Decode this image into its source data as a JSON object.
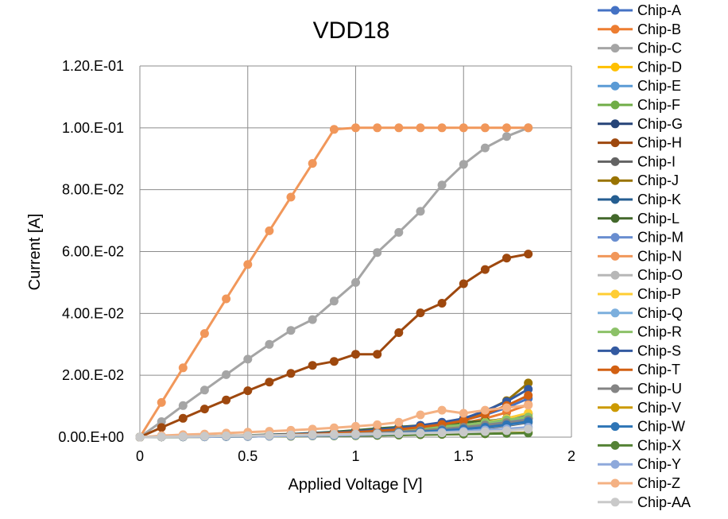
{
  "chart_data": {
    "type": "line",
    "title": "VDD18",
    "xlabel": "Applied Voltage [V]",
    "ylabel": "Current [A]",
    "xlim": [
      0,
      2
    ],
    "ylim": [
      0,
      0.12
    ],
    "x_ticks": [
      "0",
      "0.5",
      "1",
      "1.5",
      "2"
    ],
    "y_ticks": [
      "0.00.E+00",
      "2.00.E-02",
      "4.00.E-02",
      "6.00.E-02",
      "8.00.E-02",
      "1.00.E-01",
      "1.20.E-01"
    ],
    "grid": true,
    "legend_position": "right",
    "x": [
      0,
      0.1,
      0.2,
      0.3,
      0.4,
      0.5,
      0.6,
      0.7,
      0.8,
      0.9,
      1.0,
      1.1,
      1.2,
      1.3,
      1.4,
      1.5,
      1.6,
      1.7,
      1.8
    ],
    "series": [
      {
        "name": "Chip-A",
        "color": "#4472C4",
        "values": [
          0,
          0.0001,
          0.0002,
          0.0003,
          0.0004,
          0.0005,
          0.0007,
          0.0009,
          0.0011,
          0.0014,
          0.0017,
          0.0021,
          0.0026,
          0.0033,
          0.0042,
          0.0055,
          0.0072,
          0.0095,
          0.0125
        ]
      },
      {
        "name": "Chip-B",
        "color": "#ED7D31",
        "values": [
          0,
          0.0001,
          0.0002,
          0.0002,
          0.0003,
          0.0004,
          0.0005,
          0.0006,
          0.0008,
          0.001,
          0.0013,
          0.0016,
          0.002,
          0.0026,
          0.0034,
          0.0045,
          0.006,
          0.008,
          0.0105
        ]
      },
      {
        "name": "Chip-C",
        "color": "#A5A5A5",
        "values": [
          0,
          0.005,
          0.0102,
          0.0152,
          0.0202,
          0.0252,
          0.03,
          0.0345,
          0.038,
          0.044,
          0.05,
          0.0597,
          0.0662,
          0.073,
          0.0815,
          0.0882,
          0.0935,
          0.0972,
          0.1
        ]
      },
      {
        "name": "Chip-D",
        "color": "#FFC000",
        "values": [
          0,
          0.0001,
          0.0001,
          0.0002,
          0.0002,
          0.0003,
          0.0004,
          0.0005,
          0.0006,
          0.0008,
          0.001,
          0.0012,
          0.0015,
          0.0019,
          0.0024,
          0.0031,
          0.004,
          0.0052,
          0.0068
        ]
      },
      {
        "name": "Chip-E",
        "color": "#5B9BD5",
        "values": [
          0,
          0.0001,
          0.0001,
          0.0002,
          0.0003,
          0.0004,
          0.0005,
          0.0006,
          0.0008,
          0.001,
          0.0012,
          0.0015,
          0.0019,
          0.0024,
          0.003,
          0.0038,
          0.0048,
          0.006,
          0.0075
        ]
      },
      {
        "name": "Chip-F",
        "color": "#70AD47",
        "values": [
          0,
          0.0001,
          0.0002,
          0.0003,
          0.0004,
          0.0005,
          0.0006,
          0.0008,
          0.001,
          0.0012,
          0.0015,
          0.0019,
          0.0024,
          0.003,
          0.0037,
          0.0045,
          0.0052,
          0.0058,
          0.0062
        ]
      },
      {
        "name": "Chip-G",
        "color": "#264478",
        "values": [
          0,
          0.0001,
          0.0001,
          0.0002,
          0.0002,
          0.0003,
          0.0004,
          0.0005,
          0.0006,
          0.0007,
          0.0009,
          0.0011,
          0.0014,
          0.0018,
          0.0023,
          0.003,
          0.0038,
          0.0048,
          0.006
        ]
      },
      {
        "name": "Chip-H",
        "color": "#9E480E",
        "values": [
          0,
          0.0031,
          0.0061,
          0.0091,
          0.012,
          0.015,
          0.0178,
          0.0206,
          0.0232,
          0.0245,
          0.0268,
          0.0268,
          0.0338,
          0.0402,
          0.0433,
          0.0496,
          0.0542,
          0.0579,
          0.0592
        ]
      },
      {
        "name": "Chip-I",
        "color": "#636363",
        "values": [
          0,
          0.0001,
          0.0001,
          0.0002,
          0.0002,
          0.0003,
          0.0003,
          0.0004,
          0.0005,
          0.0006,
          0.0007,
          0.0009,
          0.0011,
          0.0014,
          0.0018,
          0.0023,
          0.0029,
          0.0037,
          0.0047
        ]
      },
      {
        "name": "Chip-J",
        "color": "#997300",
        "values": [
          0,
          0.0001,
          0.0002,
          0.0003,
          0.0004,
          0.0005,
          0.0007,
          0.0009,
          0.0011,
          0.0014,
          0.0018,
          0.0022,
          0.0028,
          0.0036,
          0.0046,
          0.006,
          0.0083,
          0.0118,
          0.0175
        ]
      },
      {
        "name": "Chip-K",
        "color": "#255E91",
        "values": [
          0,
          0.0001,
          0.0001,
          0.0002,
          0.0003,
          0.0004,
          0.0005,
          0.0006,
          0.0008,
          0.001,
          0.0013,
          0.0016,
          0.002,
          0.0025,
          0.0031,
          0.0039,
          0.0049,
          0.0061,
          0.0076
        ]
      },
      {
        "name": "Chip-L",
        "color": "#43682B",
        "values": [
          0,
          0.0001,
          0.0002,
          0.0003,
          0.0004,
          0.0006,
          0.0008,
          0.001,
          0.0013,
          0.0017,
          0.0022,
          0.0028,
          0.0033,
          0.0038,
          0.0043,
          0.0048,
          0.0052,
          0.0056,
          0.006
        ]
      },
      {
        "name": "Chip-M",
        "color": "#698ED0",
        "values": [
          0,
          0.0001,
          0.0001,
          0.0002,
          0.0003,
          0.0004,
          0.0005,
          0.0006,
          0.0007,
          0.0009,
          0.0011,
          0.0014,
          0.0017,
          0.0021,
          0.0026,
          0.0032,
          0.004,
          0.0049,
          0.006
        ]
      },
      {
        "name": "Chip-N",
        "color": "#F1975A",
        "values": [
          0,
          0.0112,
          0.0224,
          0.0335,
          0.0447,
          0.0558,
          0.0667,
          0.0776,
          0.0885,
          0.0995,
          0.1,
          0.1,
          0.1,
          0.1,
          0.1,
          0.1,
          0.1,
          0.1,
          0.1
        ]
      },
      {
        "name": "Chip-O",
        "color": "#B7B7B7",
        "values": [
          0,
          0.0001,
          0.0001,
          0.0001,
          0.0002,
          0.0002,
          0.0003,
          0.0003,
          0.0004,
          0.0005,
          0.0006,
          0.0007,
          0.0009,
          0.0011,
          0.0013,
          0.0016,
          0.002,
          0.0024,
          0.003
        ]
      },
      {
        "name": "Chip-P",
        "color": "#FFCD33",
        "values": [
          0,
          0.0001,
          0.0001,
          0.0002,
          0.0003,
          0.0004,
          0.0005,
          0.0006,
          0.0008,
          0.001,
          0.0012,
          0.0015,
          0.0019,
          0.0024,
          0.003,
          0.0038,
          0.0048,
          0.006,
          0.0078
        ]
      },
      {
        "name": "Chip-Q",
        "color": "#7CAFDD",
        "values": [
          0,
          0.0001,
          0.0001,
          0.0002,
          0.0002,
          0.0003,
          0.0004,
          0.0005,
          0.0006,
          0.0007,
          0.0009,
          0.0011,
          0.0013,
          0.0016,
          0.002,
          0.0025,
          0.0031,
          0.0039,
          0.0049
        ]
      },
      {
        "name": "Chip-R",
        "color": "#8CC168",
        "values": [
          0,
          0.0001,
          0.0002,
          0.0003,
          0.0004,
          0.0005,
          0.0006,
          0.0007,
          0.0009,
          0.0011,
          0.0014,
          0.0017,
          0.0021,
          0.0026,
          0.0032,
          0.0039,
          0.0047,
          0.0056,
          0.0065
        ]
      },
      {
        "name": "Chip-S",
        "color": "#335AA1",
        "values": [
          0,
          0.0001,
          0.0002,
          0.0003,
          0.0004,
          0.0005,
          0.0007,
          0.0009,
          0.0012,
          0.0015,
          0.0019,
          0.0024,
          0.003,
          0.0038,
          0.0048,
          0.006,
          0.0085,
          0.0115,
          0.0155
        ]
      },
      {
        "name": "Chip-T",
        "color": "#D26012",
        "values": [
          0,
          0.0001,
          0.0002,
          0.0003,
          0.0004,
          0.0005,
          0.0006,
          0.0008,
          0.001,
          0.0013,
          0.0016,
          0.002,
          0.0025,
          0.0032,
          0.0041,
          0.0053,
          0.0075,
          0.0102,
          0.0135
        ]
      },
      {
        "name": "Chip-U",
        "color": "#848484",
        "values": [
          0,
          0.0001,
          0.0001,
          0.0002,
          0.0003,
          0.0004,
          0.0005,
          0.0006,
          0.0007,
          0.0009,
          0.0011,
          0.0014,
          0.0017,
          0.0021,
          0.0026,
          0.0032,
          0.0039,
          0.0047,
          0.0056
        ]
      },
      {
        "name": "Chip-V",
        "color": "#CC9A00",
        "values": [
          0,
          0.0001,
          0.0001,
          0.0001,
          0.0002,
          0.0002,
          0.0003,
          0.0003,
          0.0004,
          0.0005,
          0.0005,
          0.0006,
          0.0007,
          0.0008,
          0.0009,
          0.001,
          0.0011,
          0.0013,
          0.0015
        ]
      },
      {
        "name": "Chip-W",
        "color": "#2E75B6",
        "values": [
          0,
          0.0001,
          0.0001,
          0.0002,
          0.0002,
          0.0003,
          0.0004,
          0.0005,
          0.0006,
          0.0007,
          0.0009,
          0.0011,
          0.0014,
          0.0017,
          0.0021,
          0.0026,
          0.0032,
          0.004,
          0.005
        ]
      },
      {
        "name": "Chip-X",
        "color": "#548235",
        "values": [
          0,
          0.0001,
          0.0001,
          0.0001,
          0.0002,
          0.0002,
          0.0003,
          0.0003,
          0.0004,
          0.0004,
          0.0005,
          0.0006,
          0.0007,
          0.0008,
          0.0009,
          0.001,
          0.0011,
          0.0012,
          0.0013
        ]
      },
      {
        "name": "Chip-Y",
        "color": "#8EA9DB",
        "values": [
          0,
          0.0001,
          0.0001,
          0.0001,
          0.0002,
          0.0002,
          0.0003,
          0.0004,
          0.0005,
          0.0006,
          0.0007,
          0.0009,
          0.0011,
          0.0013,
          0.0016,
          0.0019,
          0.0023,
          0.0027,
          0.0032
        ]
      },
      {
        "name": "Chip-Z",
        "color": "#F4B183",
        "values": [
          0,
          0.0005,
          0.0008,
          0.001,
          0.0013,
          0.0016,
          0.0019,
          0.0022,
          0.0026,
          0.003,
          0.0035,
          0.004,
          0.0048,
          0.0072,
          0.0087,
          0.0077,
          0.0087,
          0.0095,
          0.0103
        ]
      },
      {
        "name": "Chip-AA",
        "color": "#C9C9C9",
        "values": [
          0,
          0.0001,
          0.0002,
          0.0003,
          0.0004,
          0.0005,
          0.0006,
          0.0007,
          0.0008,
          0.0009,
          0.001,
          0.0011,
          0.0012,
          0.0013,
          0.0014,
          0.0016,
          0.0018,
          0.0021,
          0.0026
        ]
      }
    ]
  }
}
